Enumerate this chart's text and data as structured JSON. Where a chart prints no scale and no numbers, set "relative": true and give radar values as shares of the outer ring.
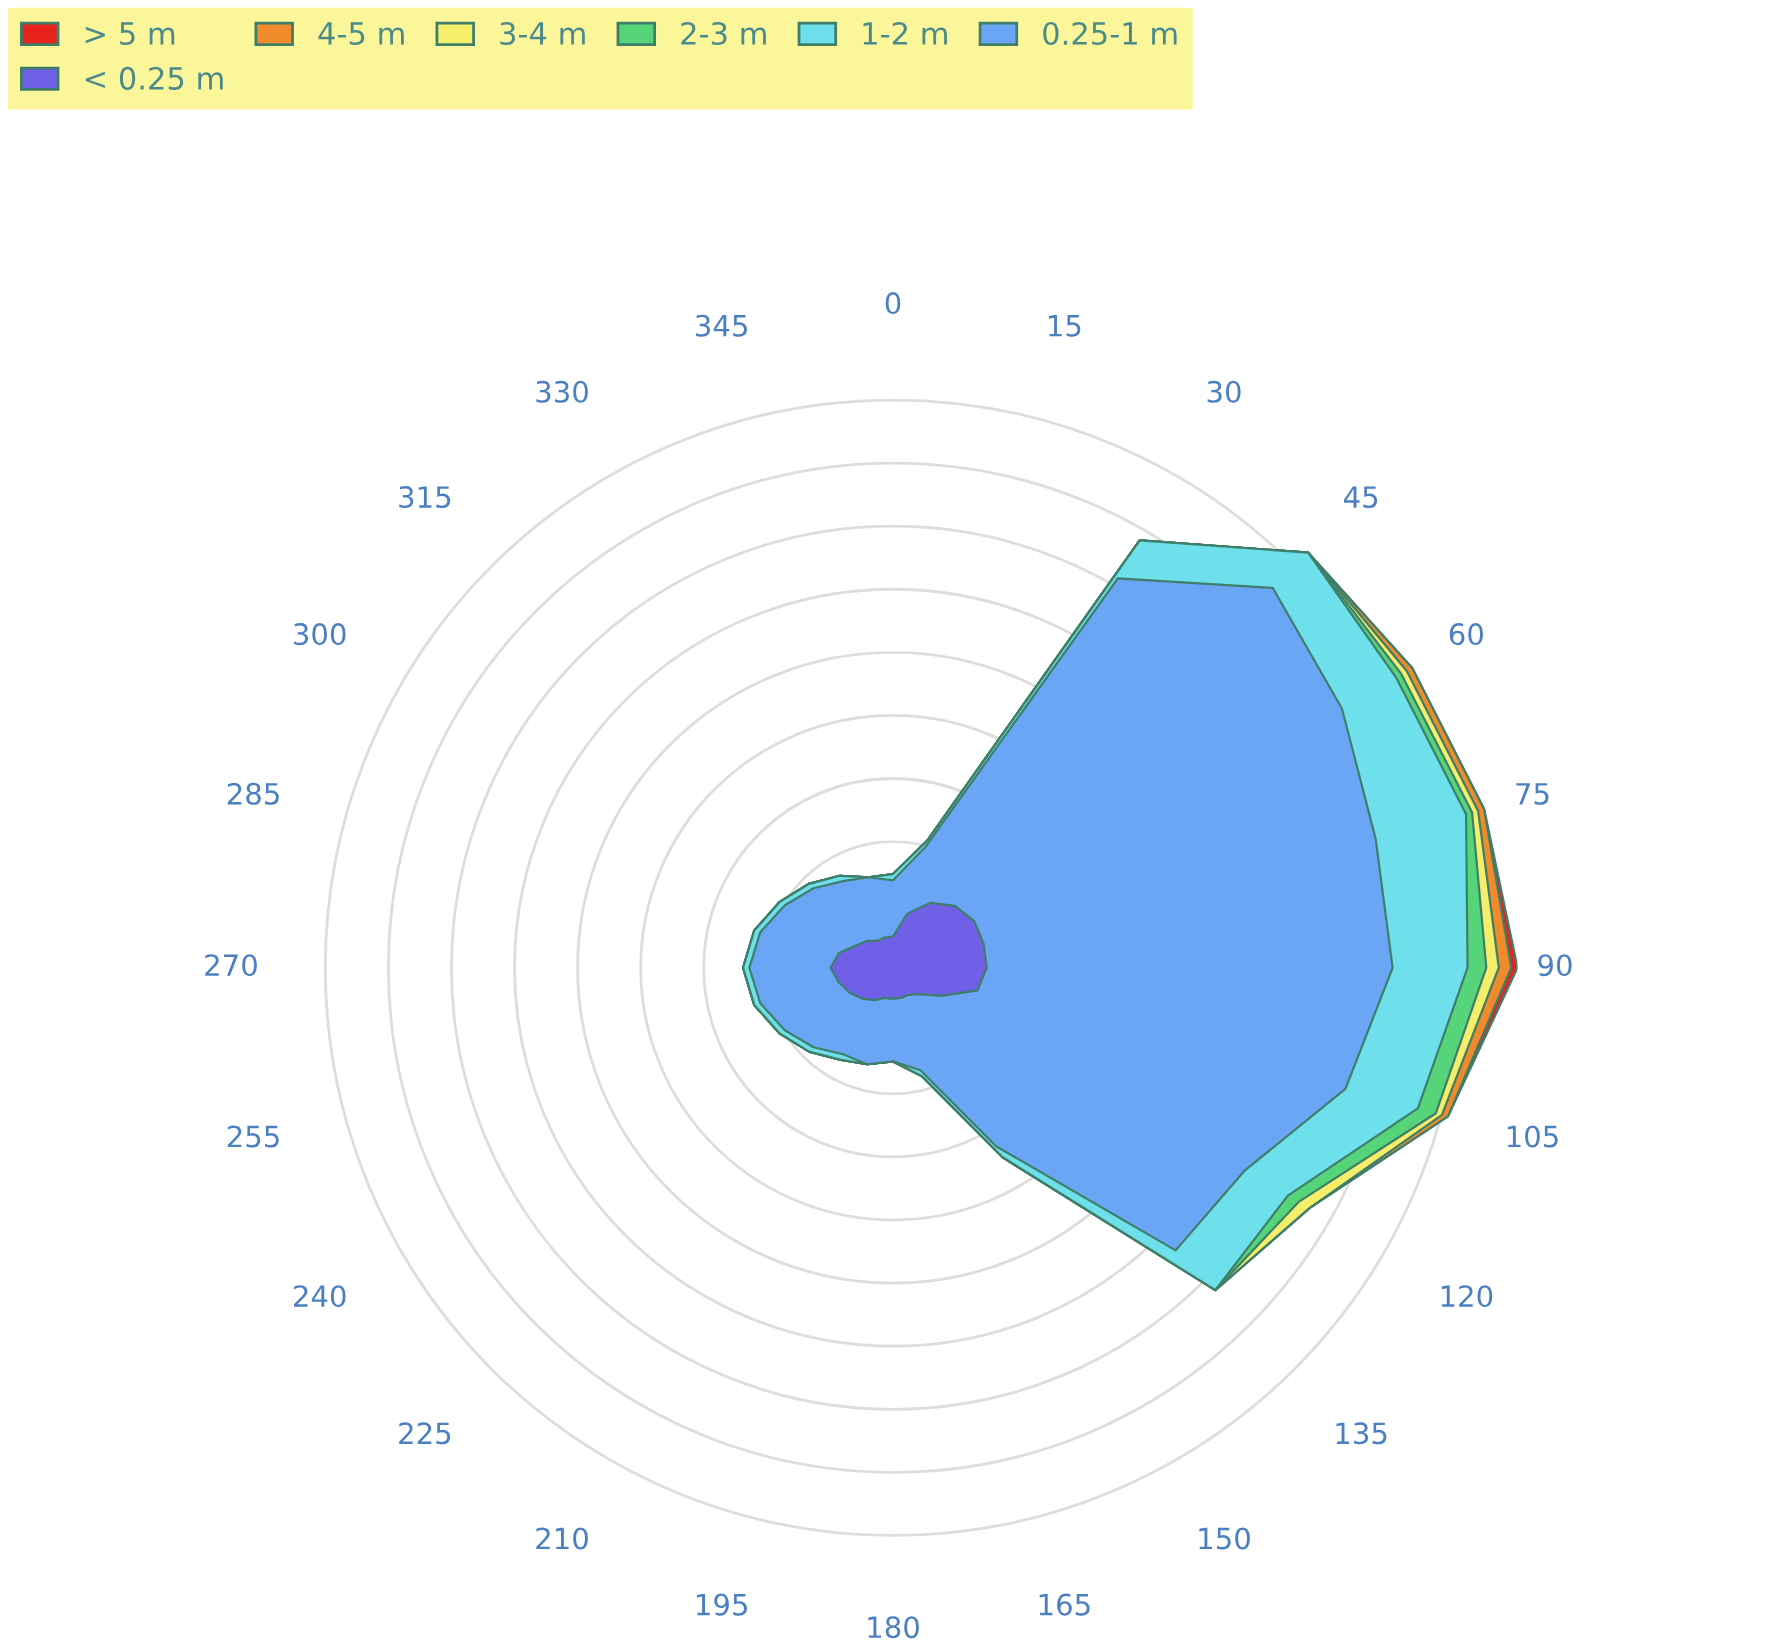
{
  "chart_data": {
    "type": "radar",
    "relative": true,
    "legend": "top",
    "grid": true,
    "categories": [
      "0",
      "15",
      "30",
      "45",
      "60",
      "75",
      "90",
      "105",
      "120",
      "135",
      "150",
      "165",
      "180",
      "195",
      "210",
      "225",
      "240",
      "255",
      "270",
      "285",
      "300",
      "315",
      "330",
      "345"
    ],
    "series": [
      {
        "name": "< 0.25 m",
        "color": "#7060e8",
        "values": [
          0.05,
          0.09,
          0.12,
          0.14,
          0.15,
          0.15,
          0.15,
          0.14,
          0.09,
          0.06,
          0.05,
          0.05,
          0.05,
          0.05,
          0.06,
          0.07,
          0.08,
          0.09,
          0.1,
          0.09,
          0.07,
          0.06,
          0.05,
          0.05
        ]
      },
      {
        "name": "0.25-1 m",
        "color": "#6aa6f5",
        "values": [
          0.14,
          0.2,
          0.72,
          0.86,
          0.83,
          0.8,
          0.8,
          0.75,
          0.65,
          0.64,
          0.33,
          0.17,
          0.15,
          0.16,
          0.16,
          0.18,
          0.2,
          0.22,
          0.23,
          0.22,
          0.2,
          0.18,
          0.16,
          0.15
        ]
      },
      {
        "name": "1-2 m",
        "color": "#6ee0ec",
        "values": [
          0.15,
          0.21,
          0.79,
          0.94,
          0.93,
          0.95,
          0.92,
          0.87,
          0.73,
          0.73,
          0.35,
          0.18,
          0.15,
          0.16,
          0.17,
          0.19,
          0.21,
          0.23,
          0.24,
          0.23,
          0.21,
          0.19,
          0.17,
          0.15
        ]
      },
      {
        "name": "2-3 m",
        "color": "#55d47a",
        "values": [
          0.15,
          0.21,
          0.79,
          0.94,
          0.94,
          0.96,
          0.95,
          0.9,
          0.75,
          0.73,
          0.35,
          0.18,
          0.15,
          0.16,
          0.17,
          0.19,
          0.21,
          0.23,
          0.24,
          0.23,
          0.21,
          0.19,
          0.17,
          0.15
        ]
      },
      {
        "name": "3-4 m",
        "color": "#f4ee6a",
        "values": [
          0.15,
          0.21,
          0.79,
          0.94,
          0.95,
          0.97,
          0.97,
          0.91,
          0.77,
          0.73,
          0.35,
          0.18,
          0.15,
          0.16,
          0.17,
          0.19,
          0.21,
          0.23,
          0.24,
          0.23,
          0.21,
          0.19,
          0.17,
          0.15
        ]
      },
      {
        "name": "4-5 m",
        "color": "#f08a2a",
        "values": [
          0.15,
          0.21,
          0.79,
          0.94,
          0.96,
          0.98,
          0.99,
          0.92,
          0.77,
          0.73,
          0.35,
          0.18,
          0.15,
          0.16,
          0.17,
          0.19,
          0.21,
          0.23,
          0.24,
          0.23,
          0.21,
          0.19,
          0.17,
          0.15
        ]
      },
      {
        "name": "> 5 m",
        "color": "#e8221c",
        "values": [
          0.15,
          0.21,
          0.79,
          0.94,
          0.96,
          0.98,
          1.0,
          0.92,
          0.77,
          0.73,
          0.35,
          0.18,
          0.15,
          0.16,
          0.17,
          0.19,
          0.21,
          0.23,
          0.24,
          0.23,
          0.21,
          0.19,
          0.17,
          0.15
        ]
      }
    ]
  }
}
